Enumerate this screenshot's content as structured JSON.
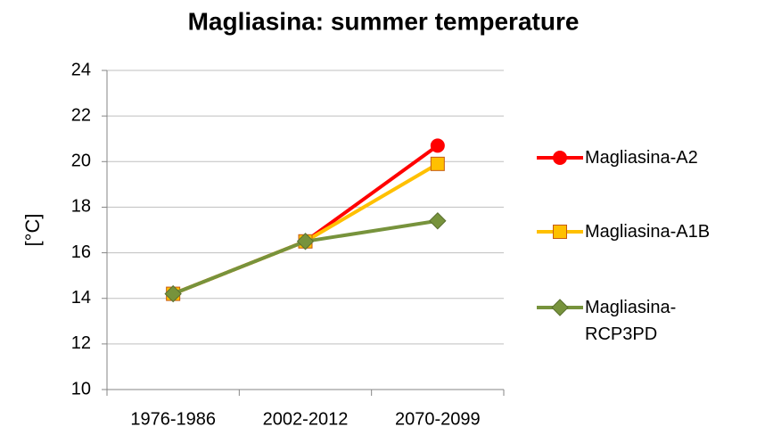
{
  "chart_data": {
    "type": "line",
    "title": "Magliasina: summer temperature",
    "y_label": "[°C]",
    "categories": [
      "1976-1986",
      "2002-2012",
      "2070-2099"
    ],
    "series": [
      {
        "name": "Magliasina-A2",
        "color": "#ff0000",
        "marker": "circle",
        "values": [
          14.2,
          16.5,
          20.7
        ]
      },
      {
        "name": "Magliasina-A1B",
        "color": "#ffc000",
        "marker": "square",
        "values": [
          14.2,
          16.5,
          19.9
        ]
      },
      {
        "name": "Magliasina-RCP3PD",
        "color": "#77933c",
        "marker": "diamond",
        "values": [
          14.2,
          16.5,
          17.4
        ]
      }
    ],
    "ylim": [
      10,
      24
    ],
    "yticks": [
      10,
      12,
      14,
      16,
      18,
      20,
      22,
      24
    ],
    "grid": true,
    "legend": "right"
  }
}
